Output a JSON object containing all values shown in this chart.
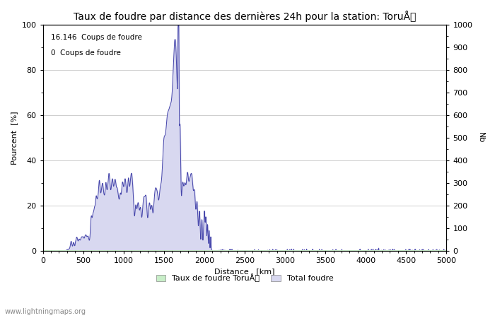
{
  "title": "Taux de foudre par distance des dernières 24h pour la station: ToruÅ",
  "xlabel": "Distance   [km]",
  "ylabel_left": "Pourcent  [%]",
  "ylabel_right": "Nb",
  "annotation_line1": "16.146  Coups de foudre",
  "annotation_line2": "0  Coups de foudre",
  "legend_label1": "Taux de foudre ToruÅ",
  "legend_label2": "Total foudre",
  "watermark": "www.lightningmaps.org",
  "xlim": [
    0,
    5000
  ],
  "ylim_left": [
    0,
    100
  ],
  "ylim_right": [
    0,
    1000
  ],
  "xticks": [
    0,
    500,
    1000,
    1500,
    2000,
    2500,
    3000,
    3500,
    4000,
    4500,
    5000
  ],
  "yticks_left": [
    0,
    20,
    40,
    60,
    80,
    100
  ],
  "yticks_right": [
    0,
    100,
    200,
    300,
    400,
    500,
    600,
    700,
    800,
    900,
    1000
  ],
  "bg_color": "#ffffff",
  "fill_color_blue": "#d8d8f0",
  "fill_color_green": "#c8eec8",
  "line_color": "#4444aa",
  "grid_color": "#bbbbbb",
  "title_fontsize": 10,
  "axis_fontsize": 8,
  "figsize": [
    7.0,
    4.5
  ],
  "dpi": 100
}
